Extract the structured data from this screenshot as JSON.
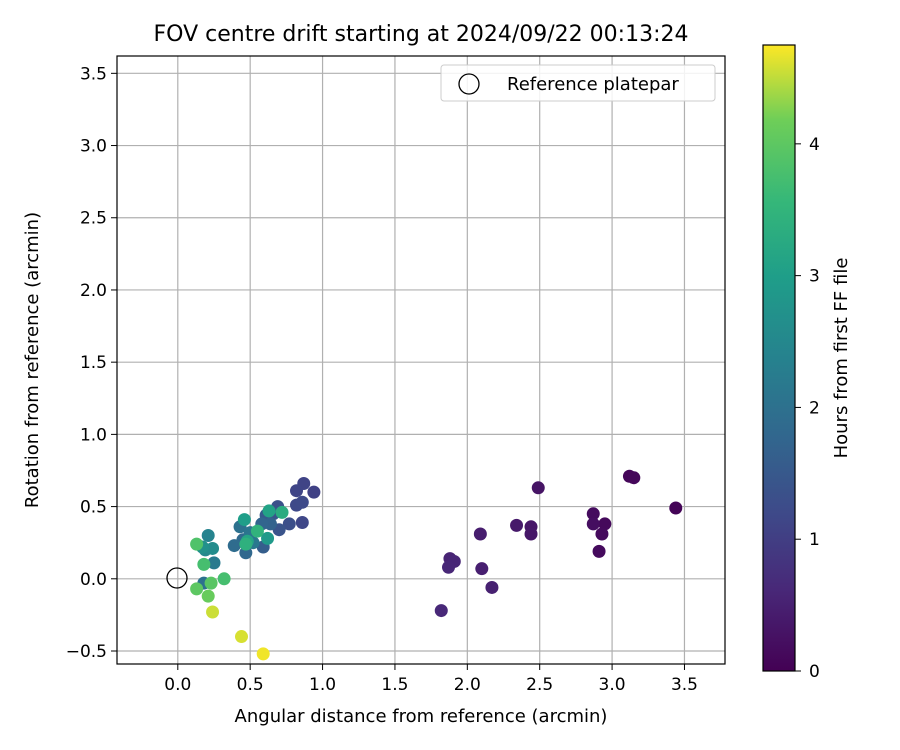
{
  "chart_data": {
    "type": "scatter",
    "title": "FOV centre drift starting at 2024/09/22 00:13:24",
    "xlabel": "Angular distance from reference (arcmin)",
    "ylabel": "Rotation from reference (arcmin)",
    "xlim": [
      -0.42,
      3.78
    ],
    "ylim": [
      -0.59,
      3.62
    ],
    "x_ticks": [
      0.0,
      0.5,
      1.0,
      1.5,
      2.0,
      2.5,
      3.0,
      3.5
    ],
    "x_tick_labels": [
      "0.0",
      "0.5",
      "1.0",
      "1.5",
      "2.0",
      "2.5",
      "3.0",
      "3.5"
    ],
    "y_ticks": [
      -0.5,
      0.0,
      0.5,
      1.0,
      1.5,
      2.0,
      2.5,
      3.0,
      3.5
    ],
    "y_tick_labels": [
      "−0.5",
      "0.0",
      "0.5",
      "1.0",
      "1.5",
      "2.0",
      "2.5",
      "3.0",
      "3.5"
    ],
    "grid": true,
    "legend": {
      "position": "top-right",
      "entries": [
        {
          "label": "Reference platepar",
          "marker": "open-circle",
          "x": 0.0,
          "y": 0.0
        }
      ]
    },
    "colorbar": {
      "label": "Hours from first FF file",
      "colormap": "viridis",
      "range": [
        0,
        4.75
      ],
      "ticks": [
        0,
        1,
        2,
        3,
        4
      ],
      "tick_labels": [
        "0",
        "1",
        "2",
        "3",
        "4"
      ]
    },
    "points": [
      {
        "x": 3.44,
        "y": 0.49,
        "c": 0.05
      },
      {
        "x": 3.12,
        "y": 0.71,
        "c": 0.08
      },
      {
        "x": 3.15,
        "y": 0.7,
        "c": 0.1
      },
      {
        "x": 2.95,
        "y": 0.38,
        "c": 0.12
      },
      {
        "x": 2.93,
        "y": 0.31,
        "c": 0.15
      },
      {
        "x": 2.91,
        "y": 0.19,
        "c": 0.15
      },
      {
        "x": 2.87,
        "y": 0.45,
        "c": 0.18
      },
      {
        "x": 2.87,
        "y": 0.38,
        "c": 0.2
      },
      {
        "x": 2.49,
        "y": 0.63,
        "c": 0.3
      },
      {
        "x": 2.44,
        "y": 0.36,
        "c": 0.32
      },
      {
        "x": 2.44,
        "y": 0.31,
        "c": 0.35
      },
      {
        "x": 2.34,
        "y": 0.37,
        "c": 0.38
      },
      {
        "x": 2.09,
        "y": 0.31,
        "c": 0.45
      },
      {
        "x": 2.1,
        "y": 0.07,
        "c": 0.48
      },
      {
        "x": 2.17,
        "y": -0.06,
        "c": 0.5
      },
      {
        "x": 1.88,
        "y": 0.14,
        "c": 0.55
      },
      {
        "x": 1.91,
        "y": 0.12,
        "c": 0.58
      },
      {
        "x": 1.87,
        "y": 0.08,
        "c": 0.6
      },
      {
        "x": 1.82,
        "y": -0.22,
        "c": 0.62
      },
      {
        "x": 0.94,
        "y": 0.6,
        "c": 1.05
      },
      {
        "x": 0.87,
        "y": 0.66,
        "c": 1.1
      },
      {
        "x": 0.82,
        "y": 0.61,
        "c": 1.12
      },
      {
        "x": 0.86,
        "y": 0.39,
        "c": 1.15
      },
      {
        "x": 0.82,
        "y": 0.51,
        "c": 1.18
      },
      {
        "x": 0.86,
        "y": 0.53,
        "c": 1.2
      },
      {
        "x": 0.77,
        "y": 0.38,
        "c": 1.3
      },
      {
        "x": 0.69,
        "y": 0.5,
        "c": 1.35
      },
      {
        "x": 0.7,
        "y": 0.34,
        "c": 1.4
      },
      {
        "x": 0.66,
        "y": 0.45,
        "c": 1.45
      },
      {
        "x": 0.61,
        "y": 0.44,
        "c": 1.55
      },
      {
        "x": 0.59,
        "y": 0.22,
        "c": 1.6
      },
      {
        "x": 0.64,
        "y": 0.38,
        "c": 1.7
      },
      {
        "x": 0.58,
        "y": 0.38,
        "c": 1.75
      },
      {
        "x": 0.47,
        "y": 0.18,
        "c": 1.8
      },
      {
        "x": 0.45,
        "y": 0.27,
        "c": 1.85
      },
      {
        "x": 0.39,
        "y": 0.23,
        "c": 1.9
      },
      {
        "x": 0.43,
        "y": 0.36,
        "c": 2.0
      },
      {
        "x": 0.5,
        "y": 0.32,
        "c": 2.1
      },
      {
        "x": 0.52,
        "y": 0.25,
        "c": 2.15
      },
      {
        "x": 0.18,
        "y": -0.03,
        "c": 2.0
      },
      {
        "x": 0.25,
        "y": 0.11,
        "c": 2.2
      },
      {
        "x": 0.21,
        "y": 0.3,
        "c": 2.4
      },
      {
        "x": 0.19,
        "y": 0.2,
        "c": 2.5
      },
      {
        "x": 0.24,
        "y": 0.21,
        "c": 2.6
      },
      {
        "x": 0.17,
        "y": 0.22,
        "c": 2.7
      },
      {
        "x": 0.62,
        "y": 0.28,
        "c": 2.9
      },
      {
        "x": 0.46,
        "y": 0.41,
        "c": 3.0
      },
      {
        "x": 0.63,
        "y": 0.47,
        "c": 3.1
      },
      {
        "x": 0.48,
        "y": 0.26,
        "c": 3.15
      },
      {
        "x": 0.72,
        "y": 0.46,
        "c": 3.3
      },
      {
        "x": 0.47,
        "y": 0.24,
        "c": 3.4
      },
      {
        "x": 0.55,
        "y": 0.33,
        "c": 3.45
      },
      {
        "x": 0.13,
        "y": 0.24,
        "c": 3.85
      },
      {
        "x": 0.18,
        "y": 0.1,
        "c": 3.75
      },
      {
        "x": 0.32,
        "y": 0.0,
        "c": 3.75
      },
      {
        "x": 0.23,
        "y": -0.03,
        "c": 3.95
      },
      {
        "x": 0.13,
        "y": -0.07,
        "c": 4.0
      },
      {
        "x": 0.21,
        "y": -0.12,
        "c": 4.1
      },
      {
        "x": 0.24,
        "y": -0.23,
        "c": 4.55
      },
      {
        "x": 0.44,
        "y": -0.4,
        "c": 4.6
      },
      {
        "x": 0.59,
        "y": -0.52,
        "c": 4.7
      }
    ]
  }
}
